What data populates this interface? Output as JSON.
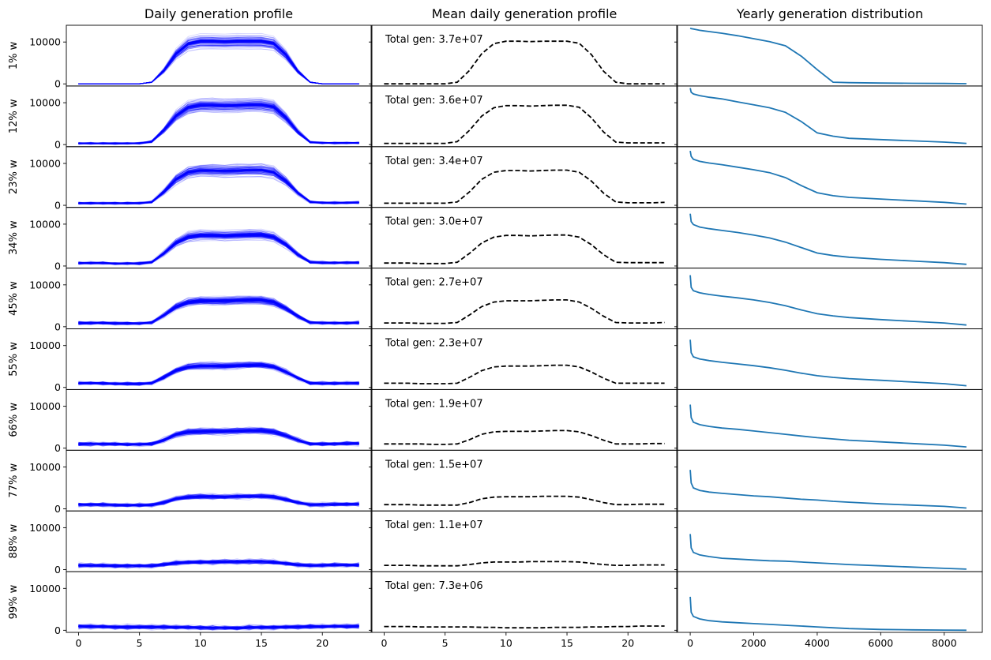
{
  "columns": [
    "Daily generation profile",
    "Mean daily generation profile",
    "Yearly generation distribution"
  ],
  "rows": [
    "1% w",
    "12% w",
    "23% w",
    "34% w",
    "45% w",
    "55% w",
    "66% w",
    "77% w",
    "88% w",
    "99% w"
  ],
  "ann_prefix": "Total gen: ",
  "colors": {
    "profiles": "#0000ff",
    "mean": "#000000",
    "duration": "#1f77b4"
  },
  "chart_data": [
    {
      "type": "line",
      "title": "Daily generation profile",
      "note": "Many translucent daily profile lines per subplot (hour 0-23). Shared y axis across rows.",
      "x_ticks": [
        0,
        5,
        10,
        15,
        20
      ],
      "y_ticks": [
        0,
        10000
      ],
      "xlim": [
        -1,
        24
      ],
      "ylim": [
        -500,
        14000
      ],
      "series": [
        {
          "name": "1% w",
          "peak_mean": 10200
        },
        {
          "name": "12% w",
          "peak_mean": 9500
        },
        {
          "name": "23% w",
          "peak_mean": 8500
        },
        {
          "name": "34% w",
          "peak_mean": 7500
        },
        {
          "name": "45% w",
          "peak_mean": 6300
        },
        {
          "name": "55% w",
          "peak_mean": 5200
        },
        {
          "name": "66% w",
          "peak_mean": 4100
        },
        {
          "name": "77% w",
          "peak_mean": 3000
        },
        {
          "name": "88% w",
          "peak_mean": 2000
        },
        {
          "name": "99% w",
          "peak_mean": 700
        }
      ]
    },
    {
      "type": "line",
      "title": "Mean daily generation profile",
      "x": [
        0,
        1,
        2,
        3,
        4,
        5,
        6,
        7,
        8,
        9,
        10,
        11,
        12,
        13,
        14,
        15,
        16,
        17,
        18,
        19,
        20,
        21,
        22,
        23
      ],
      "x_ticks": [
        0,
        5,
        10,
        15,
        20
      ],
      "xlim": [
        -1,
        24
      ],
      "ylim": [
        -500,
        14000
      ],
      "series": [
        {
          "name": "1% w",
          "total_gen": "3.7e+07",
          "values": [
            0,
            0,
            0,
            0,
            0,
            0,
            400,
            3200,
            7200,
            9600,
            10200,
            10200,
            10100,
            10200,
            10200,
            10200,
            9700,
            7000,
            3000,
            400,
            0,
            0,
            0,
            0
          ]
        },
        {
          "name": "12% w",
          "total_gen": "3.6e+07",
          "values": [
            300,
            300,
            300,
            300,
            300,
            300,
            700,
            3400,
            6800,
            8800,
            9300,
            9300,
            9200,
            9300,
            9400,
            9400,
            8900,
            6400,
            3000,
            600,
            400,
            400,
            400,
            400
          ]
        },
        {
          "name": "23% w",
          "total_gen": "3.4e+07",
          "values": [
            500,
            500,
            500,
            500,
            500,
            500,
            800,
            3200,
            6200,
            7900,
            8300,
            8300,
            8200,
            8300,
            8400,
            8400,
            7900,
            5800,
            2900,
            800,
            600,
            600,
            600,
            700
          ]
        },
        {
          "name": "34% w",
          "total_gen": "3.0e+07",
          "values": [
            700,
            700,
            700,
            600,
            600,
            600,
            900,
            3000,
            5500,
            6900,
            7300,
            7300,
            7200,
            7300,
            7400,
            7400,
            6900,
            5100,
            2700,
            900,
            800,
            800,
            800,
            800
          ]
        },
        {
          "name": "45% w",
          "total_gen": "2.7e+07",
          "values": [
            900,
            900,
            900,
            800,
            800,
            800,
            1000,
            2800,
            4800,
            5900,
            6200,
            6200,
            6200,
            6300,
            6400,
            6400,
            5900,
            4400,
            2500,
            1000,
            900,
            900,
            900,
            1000
          ]
        },
        {
          "name": "55% w",
          "total_gen": "2.3e+07",
          "values": [
            1000,
            1000,
            1000,
            900,
            900,
            900,
            1000,
            2400,
            4000,
            4900,
            5100,
            5100,
            5100,
            5200,
            5300,
            5300,
            4900,
            3700,
            2200,
            1000,
            1000,
            1000,
            1000,
            1000
          ]
        },
        {
          "name": "66% w",
          "total_gen": "1.9e+07",
          "values": [
            1000,
            1000,
            1000,
            1000,
            900,
            900,
            1000,
            2000,
            3300,
            3900,
            4000,
            4000,
            4000,
            4100,
            4200,
            4200,
            3900,
            3000,
            1900,
            1000,
            1000,
            1000,
            1100,
            1100
          ]
        },
        {
          "name": "77% w",
          "total_gen": "1.5e+07",
          "values": [
            1000,
            1000,
            1000,
            900,
            900,
            900,
            900,
            1500,
            2400,
            2800,
            2900,
            2900,
            2900,
            3000,
            3000,
            3000,
            2800,
            2200,
            1500,
            1000,
            1000,
            1100,
            1100,
            1100
          ]
        },
        {
          "name": "88% w",
          "total_gen": "1.1e+07",
          "values": [
            1000,
            1000,
            1000,
            900,
            900,
            900,
            900,
            1200,
            1600,
            1800,
            1800,
            1800,
            1900,
            1900,
            1900,
            1900,
            1800,
            1500,
            1200,
            1000,
            1000,
            1100,
            1100,
            1100
          ]
        },
        {
          "name": "99% w",
          "total_gen": "7.3e+06",
          "values": [
            900,
            900,
            900,
            800,
            800,
            800,
            800,
            800,
            700,
            700,
            600,
            600,
            600,
            600,
            700,
            700,
            700,
            800,
            800,
            900,
            900,
            1000,
            1000,
            1000
          ]
        }
      ]
    },
    {
      "type": "line",
      "title": "Yearly generation distribution",
      "x": [
        0,
        30,
        100,
        300,
        600,
        1000,
        1500,
        2000,
        2500,
        3000,
        3500,
        4000,
        4500,
        5000,
        6000,
        7000,
        8000,
        8700
      ],
      "x_ticks": [
        0,
        2000,
        4000,
        6000,
        8000
      ],
      "xlim": [
        -400,
        9200
      ],
      "ylim": [
        -500,
        14000
      ],
      "series": [
        {
          "name": "1% w",
          "values": [
            13300,
            13200,
            13100,
            12800,
            12500,
            12100,
            11500,
            10800,
            10100,
            9100,
            6600,
            3400,
            400,
            300,
            200,
            150,
            100,
            50
          ]
        },
        {
          "name": "12% w",
          "values": [
            13500,
            12500,
            12100,
            11700,
            11300,
            10900,
            10200,
            9500,
            8800,
            7700,
            5500,
            2800,
            2000,
            1500,
            1200,
            900,
            600,
            300
          ]
        },
        {
          "name": "23% w",
          "values": [
            13000,
            11700,
            11000,
            10500,
            10100,
            9700,
            9100,
            8500,
            7800,
            6600,
            4700,
            3000,
            2300,
            1900,
            1500,
            1100,
            700,
            300
          ]
        },
        {
          "name": "34% w",
          "values": [
            12500,
            10600,
            9900,
            9300,
            8900,
            8500,
            8000,
            7400,
            6700,
            5700,
            4400,
            3100,
            2500,
            2100,
            1600,
            1200,
            800,
            400
          ]
        },
        {
          "name": "45% w",
          "values": [
            12300,
            9400,
            8600,
            8100,
            7700,
            7300,
            6900,
            6400,
            5800,
            5000,
            4000,
            3100,
            2600,
            2200,
            1700,
            1300,
            900,
            400
          ]
        },
        {
          "name": "55% w",
          "values": [
            11400,
            8300,
            7300,
            6800,
            6400,
            6000,
            5600,
            5200,
            4700,
            4100,
            3400,
            2800,
            2400,
            2100,
            1700,
            1300,
            900,
            400
          ]
        },
        {
          "name": "66% w",
          "values": [
            10400,
            7300,
            6200,
            5600,
            5200,
            4800,
            4500,
            4100,
            3700,
            3300,
            2900,
            2500,
            2200,
            1900,
            1500,
            1100,
            700,
            300
          ]
        },
        {
          "name": "77% w",
          "values": [
            9300,
            6200,
            5000,
            4400,
            4000,
            3700,
            3400,
            3100,
            2900,
            2600,
            2300,
            2100,
            1800,
            1600,
            1200,
            900,
            600,
            200
          ]
        },
        {
          "name": "88% w",
          "values": [
            8500,
            5200,
            4100,
            3500,
            3100,
            2700,
            2500,
            2300,
            2100,
            2000,
            1800,
            1600,
            1400,
            1200,
            900,
            600,
            300,
            100
          ]
        },
        {
          "name": "99% w",
          "values": [
            8000,
            4300,
            3300,
            2700,
            2300,
            2000,
            1800,
            1600,
            1400,
            1200,
            1000,
            800,
            600,
            400,
            200,
            100,
            50,
            0
          ]
        }
      ]
    }
  ]
}
